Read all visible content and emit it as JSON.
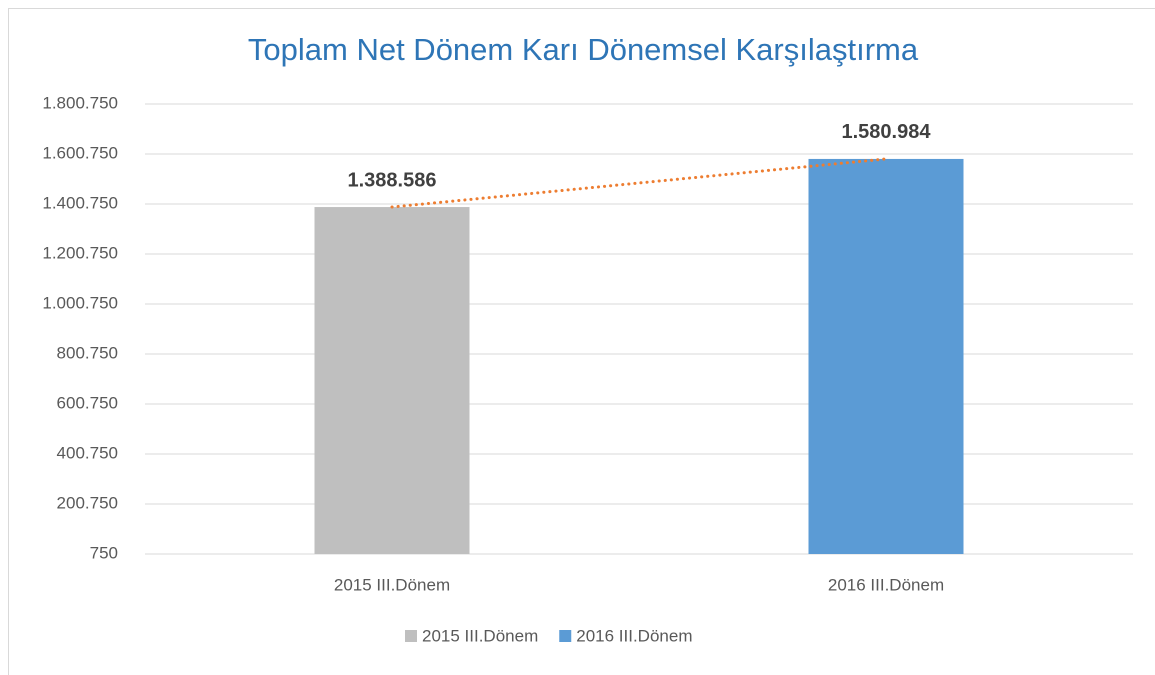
{
  "chart_data": {
    "type": "bar",
    "title": "Toplam Net Dönem Karı Dönemsel Karşılaştırma",
    "categories": [
      "2015 III.Dönem",
      "2016 III.Dönem"
    ],
    "series": [
      {
        "name": "2015 III.Dönem",
        "color": "#bfbfbf",
        "values": [
          1388586,
          null
        ],
        "value_labels": [
          "1.388.586",
          null
        ]
      },
      {
        "name": "2016 III.Dönem",
        "color": "#5b9bd5",
        "values": [
          null,
          1580984
        ],
        "value_labels": [
          null,
          "1.580.984"
        ]
      }
    ],
    "ylim": [
      750,
      1800750
    ],
    "yticks": [
      750,
      {
        "value": 200750,
        "label": "200.750"
      },
      {
        "value": 400750,
        "label": "400.750"
      },
      {
        "value": 600750,
        "label": "600.750"
      },
      {
        "value": 800750,
        "label": "800.750"
      },
      {
        "value": 1000750,
        "label": "1.000.750"
      },
      {
        "value": 1200750,
        "label": "1.200.750"
      },
      {
        "value": 1400750,
        "label": "1.400.750"
      },
      {
        "value": 1600750,
        "label": "1.600.750"
      },
      {
        "value": 1800750,
        "label": "1.800.750"
      }
    ],
    "grid": true,
    "legend": "bottom",
    "trendline": {
      "color": "#ed7d31",
      "style": "dotted"
    }
  }
}
